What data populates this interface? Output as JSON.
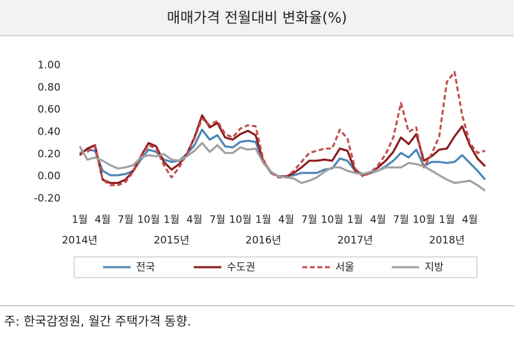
{
  "chart_data": {
    "type": "line",
    "title": "매매가격 전월대비 변화율(%)",
    "note": "주: 한국감정원, 월간 주택가격 동향.",
    "categories": [
      "1월",
      null,
      null,
      "4월",
      null,
      null,
      "7월",
      null,
      null,
      "10월",
      null,
      null,
      "1월",
      null,
      null,
      "4월",
      null,
      null,
      "7월",
      null,
      null,
      "10월",
      null,
      null,
      "1월",
      null,
      null,
      "4월",
      null,
      null,
      "7월",
      null,
      null,
      "10월",
      null,
      null,
      "1월",
      null,
      null,
      "4월",
      null,
      null,
      "7월",
      null,
      null,
      "10월",
      null,
      null,
      "1월",
      null,
      null,
      "4월",
      null,
      null
    ],
    "year_labels": [
      "2014년",
      "2015년",
      "2016년",
      "2017년",
      "2018년"
    ],
    "ylim": [
      -0.2,
      1.0
    ],
    "yticks": [
      {
        "value": -0.2,
        "label": "-0.20"
      },
      {
        "value": 0,
        "label": "0.00"
      },
      {
        "value": 0.2,
        "label": "0.20"
      },
      {
        "value": 0.4,
        "label": "0.40"
      },
      {
        "value": 0.6,
        "label": "0.60"
      },
      {
        "value": 0.8,
        "label": "0.80"
      },
      {
        "value": 1.0,
        "label": "1.00"
      }
    ],
    "grid": false,
    "legend": "bottom",
    "series": [
      {
        "name": "전국",
        "color": "#4a86b8",
        "dashed": false,
        "values": [
          0.21,
          0.24,
          0.23,
          0.05,
          0.01,
          0.01,
          0.02,
          0.05,
          0.15,
          0.24,
          0.22,
          0.15,
          0.13,
          0.14,
          0.2,
          0.28,
          0.42,
          0.33,
          0.37,
          0.27,
          0.26,
          0.31,
          0.32,
          0.31,
          0.13,
          0.03,
          0.0,
          0.0,
          0.01,
          0.03,
          0.03,
          0.03,
          0.06,
          0.07,
          0.16,
          0.14,
          0.05,
          0.02,
          0.03,
          0.05,
          0.09,
          0.14,
          0.21,
          0.17,
          0.24,
          0.09,
          0.13,
          0.13,
          0.12,
          0.13,
          0.19,
          0.12,
          0.05,
          -0.03
        ]
      },
      {
        "name": "수도권",
        "color": "#8b1c1c",
        "dashed": false,
        "values": [
          0.19,
          0.25,
          0.28,
          -0.03,
          -0.06,
          -0.06,
          -0.03,
          0.05,
          0.18,
          0.3,
          0.27,
          0.13,
          0.06,
          0.11,
          0.2,
          0.35,
          0.55,
          0.44,
          0.48,
          0.35,
          0.33,
          0.38,
          0.41,
          0.37,
          0.13,
          0.04,
          0.0,
          0.0,
          0.03,
          0.08,
          0.14,
          0.14,
          0.15,
          0.14,
          0.25,
          0.23,
          0.05,
          0.01,
          0.03,
          0.08,
          0.14,
          0.22,
          0.35,
          0.29,
          0.38,
          0.14,
          0.18,
          0.24,
          0.25,
          0.36,
          0.45,
          0.28,
          0.16,
          0.09
        ]
      },
      {
        "name": "서울",
        "color": "#c0504d",
        "dashed": true,
        "values": [
          0.21,
          0.22,
          0.27,
          -0.03,
          -0.08,
          -0.08,
          -0.05,
          0.04,
          0.17,
          0.28,
          0.25,
          0.1,
          -0.01,
          0.08,
          0.2,
          0.34,
          0.52,
          0.46,
          0.5,
          0.38,
          0.35,
          0.43,
          0.46,
          0.45,
          0.15,
          0.03,
          -0.01,
          -0.01,
          0.05,
          0.13,
          0.21,
          0.23,
          0.25,
          0.25,
          0.42,
          0.34,
          0.07,
          0.0,
          0.03,
          0.1,
          0.2,
          0.35,
          0.66,
          0.4,
          0.44,
          0.08,
          0.2,
          0.36,
          0.85,
          0.94,
          0.55,
          0.3,
          0.21,
          0.23
        ]
      },
      {
        "name": "지방",
        "color": "#a0a0a0",
        "dashed": false,
        "values": [
          0.27,
          0.15,
          0.17,
          0.14,
          0.1,
          0.07,
          0.08,
          0.1,
          0.17,
          0.19,
          0.18,
          0.2,
          0.15,
          0.14,
          0.18,
          0.23,
          0.3,
          0.22,
          0.28,
          0.21,
          0.21,
          0.26,
          0.24,
          0.25,
          0.12,
          0.04,
          0.0,
          -0.01,
          -0.02,
          -0.06,
          -0.04,
          -0.01,
          0.04,
          0.08,
          0.08,
          0.05,
          0.03,
          0.02,
          0.04,
          0.05,
          0.08,
          0.08,
          0.08,
          0.12,
          0.11,
          0.09,
          0.05,
          0.01,
          -0.03,
          -0.06,
          -0.05,
          -0.04,
          -0.08,
          -0.13
        ]
      }
    ]
  }
}
